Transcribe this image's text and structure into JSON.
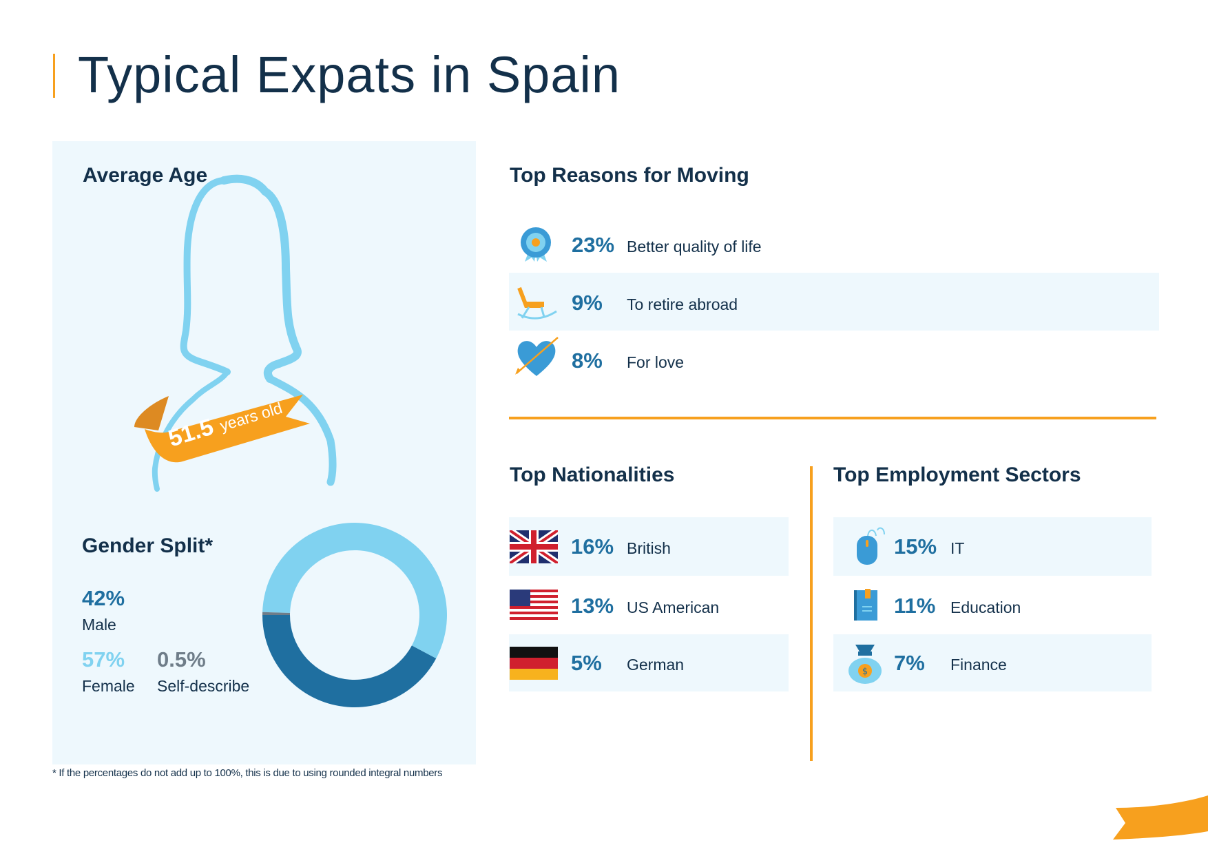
{
  "title": "Typical Expats in Spain",
  "average_age": {
    "heading": "Average Age",
    "value": "51.5",
    "unit": "years old"
  },
  "gender": {
    "heading": "Gender Split*",
    "male": {
      "pct": "42%",
      "label": "Male"
    },
    "female": {
      "pct": "57%",
      "label": "Female"
    },
    "self": {
      "pct": "0.5%",
      "label": "Self-describe"
    }
  },
  "chart_data": {
    "type": "pie",
    "style": "donut",
    "categories": [
      "Male",
      "Female",
      "Self-describe"
    ],
    "values": [
      42,
      57,
      0.5
    ],
    "colors": [
      "#1f6fa0",
      "#80d2f0",
      "#6f7d89"
    ]
  },
  "footnote": "* If the percentages do not add up to 100%, this is due to using rounded integral numbers",
  "reasons": {
    "heading": "Top Reasons for Moving",
    "items": [
      {
        "pct": "23%",
        "label": "Better quality of life",
        "icon": "rosette-icon"
      },
      {
        "pct": "9%",
        "label": "To retire abroad",
        "icon": "rocking-chair-icon"
      },
      {
        "pct": "8%",
        "label": "For love",
        "icon": "heart-arrow-icon"
      }
    ]
  },
  "nationalities": {
    "heading": "Top Nationalities",
    "items": [
      {
        "pct": "16%",
        "label": "British",
        "icon": "uk-flag-icon"
      },
      {
        "pct": "13%",
        "label": "US American",
        "icon": "us-flag-icon"
      },
      {
        "pct": "5%",
        "label": "German",
        "icon": "german-flag-icon"
      }
    ]
  },
  "sectors": {
    "heading": "Top Employment Sectors",
    "items": [
      {
        "pct": "15%",
        "label": "IT",
        "icon": "mouse-icon"
      },
      {
        "pct": "11%",
        "label": "Education",
        "icon": "book-icon"
      },
      {
        "pct": "7%",
        "label": "Finance",
        "icon": "money-bag-icon"
      }
    ]
  },
  "colors": {
    "navy": "#13304a",
    "blue": "#1f6fa0",
    "light_blue": "#80d2f0",
    "orange": "#f7a01e",
    "panel": "#eef8fd"
  }
}
